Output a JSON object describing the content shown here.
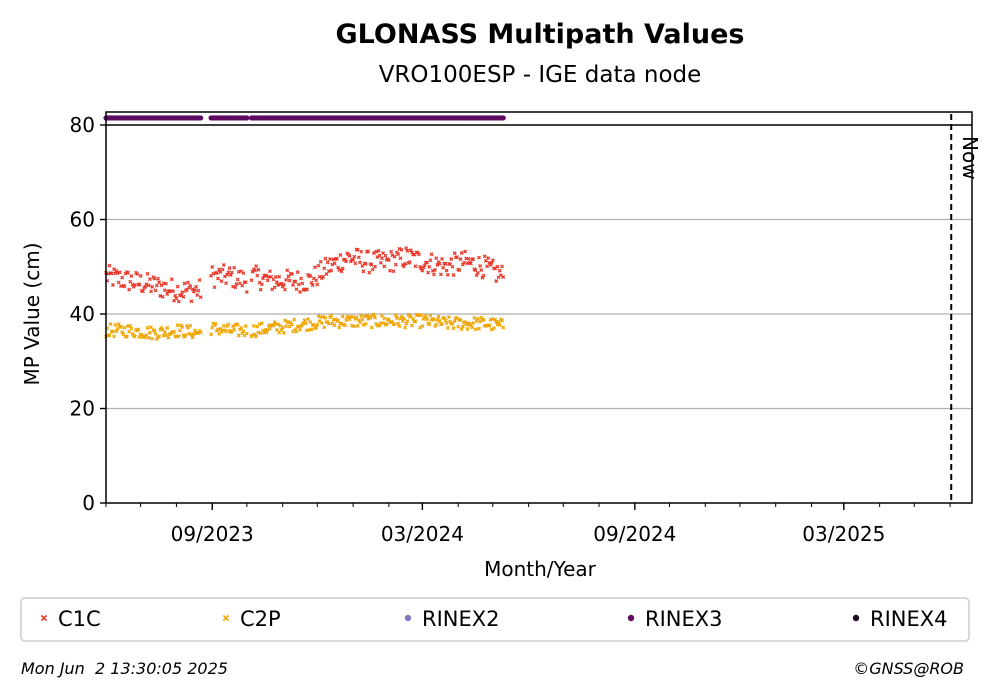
{
  "chart_data": {
    "type": "scatter",
    "title": "GLONASS Multipath Values",
    "subtitle": "VRO100ESP - IGE data node",
    "xlabel": "Month/Year",
    "ylabel": "MP Value (cm)",
    "ylim": [
      0,
      80
    ],
    "xlim": [
      "2023-06-01",
      "2025-06-20"
    ],
    "x_tick_labels": [
      "09/2023",
      "03/2024",
      "09/2024",
      "03/2025"
    ],
    "x_tick_dates": [
      "2023-09-01",
      "2024-03-01",
      "2024-09-01",
      "2025-03-01"
    ],
    "y_ticks": [
      0,
      20,
      40,
      60,
      80
    ],
    "grid": "horizontal",
    "now_marker": {
      "label": "Now",
      "date": "2025-06-02"
    },
    "series": [
      {
        "name": "C1C",
        "color": "#e8392b",
        "marker": "x",
        "segments": [
          {
            "start": "2023-06-01",
            "end": "2023-08-22",
            "levels": [
              48,
              47,
              46,
              45,
              45
            ]
          },
          {
            "start": "2023-08-31",
            "end": "2023-10-01",
            "levels": [
              48,
              48,
              47
            ]
          },
          {
            "start": "2023-10-05",
            "end": "2024-05-10",
            "levels": [
              48,
              47,
              47,
              47,
              50,
              52,
              51,
              51,
              52,
              51,
              50,
              51,
              50,
              48
            ]
          }
        ]
      },
      {
        "name": "C2P",
        "color": "#f0a500",
        "marker": "x",
        "segments": [
          {
            "start": "2023-06-01",
            "end": "2023-08-22",
            "levels": [
              36.5,
              36.5,
              36,
              36.5,
              36
            ]
          },
          {
            "start": "2023-08-31",
            "end": "2023-10-01",
            "levels": [
              37,
              36.5,
              36.5
            ]
          },
          {
            "start": "2023-10-05",
            "end": "2024-05-10",
            "levels": [
              36.5,
              37,
              37.5,
              38,
              38.5,
              38.5,
              38.5,
              38.5,
              38.5,
              38.5,
              38,
              38,
              38,
              37.5
            ]
          }
        ]
      },
      {
        "name": "RINEX2",
        "color": "#8878c0",
        "marker": "dot",
        "segments": []
      },
      {
        "name": "RINEX3",
        "color": "#5e0a62",
        "marker": "dot",
        "value": 81.5,
        "segments": [
          {
            "start": "2023-06-01",
            "end": "2023-08-22"
          },
          {
            "start": "2023-08-31",
            "end": "2023-10-01"
          },
          {
            "start": "2023-10-05",
            "end": "2024-05-10"
          }
        ]
      },
      {
        "name": "RINEX4",
        "color": "#1a0a1e",
        "marker": "dot",
        "segments": []
      }
    ]
  },
  "footer": {
    "timestamp": "Mon Jun  2 13:30:05 2025",
    "credit": "©GNSS@ROB"
  }
}
